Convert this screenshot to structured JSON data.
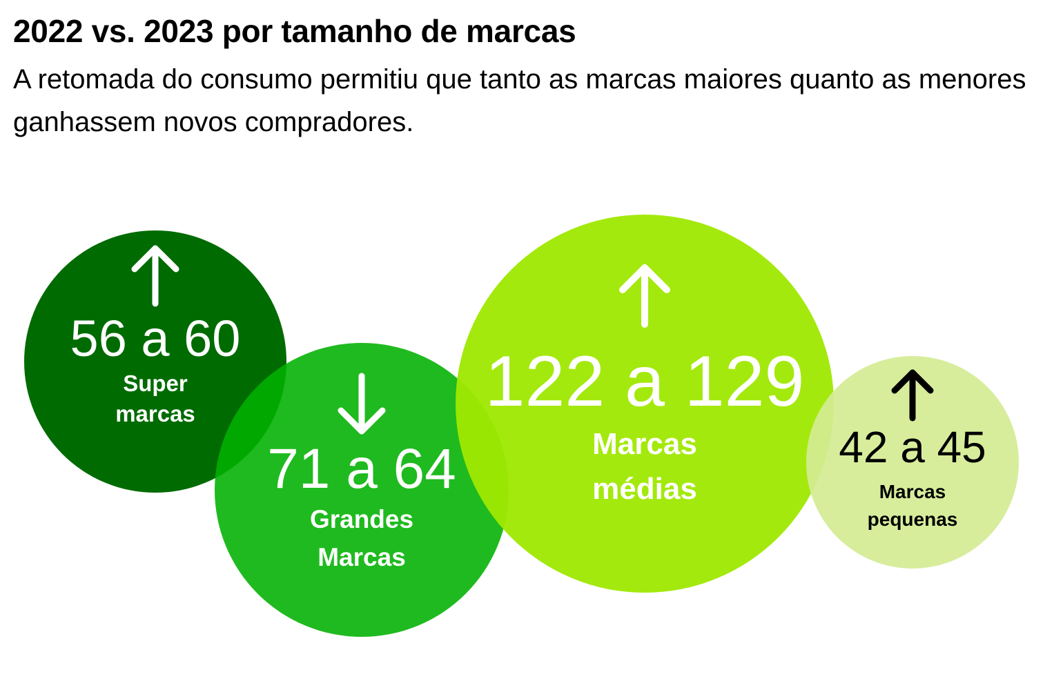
{
  "header": {
    "title": "2022 vs. 2023 por tamanho de marcas",
    "subtitle": "A retomada do consumo permitiu que tanto as marcas maiores quanto as menores ganhassem novos compradores."
  },
  "colors": {
    "super": "#006b00",
    "grandes": "#00b000",
    "medias": "#9fe800",
    "pequenas": "#d4eb94",
    "white_text": "#ffffff",
    "dark_text": "#000000"
  },
  "chart_data": {
    "type": "bubble",
    "title": "2022 vs. 2023 por tamanho de marcas",
    "series": [
      {
        "label_lines": [
          "Super",
          "marcas"
        ],
        "from": 56,
        "to": 60,
        "display": "56 a 60",
        "trend": "up",
        "arrow_icon": "arrow-up-icon"
      },
      {
        "label_lines": [
          "Grandes",
          "Marcas"
        ],
        "from": 71,
        "to": 64,
        "display": "71 a 64",
        "trend": "down",
        "arrow_icon": "arrow-down-icon"
      },
      {
        "label_lines": [
          "Marcas",
          "médias"
        ],
        "from": 122,
        "to": 129,
        "display": "122 a 129",
        "trend": "up",
        "arrow_icon": "arrow-up-icon"
      },
      {
        "label_lines": [
          "Marcas",
          "pequenas"
        ],
        "from": 42,
        "to": 45,
        "display": "42 a 45",
        "trend": "up",
        "arrow_icon": "arrow-up-icon"
      }
    ]
  }
}
